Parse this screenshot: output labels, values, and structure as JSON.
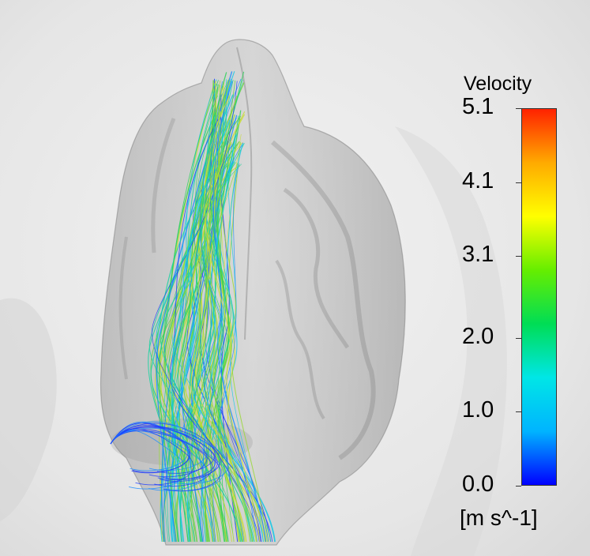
{
  "legend": {
    "title": "Velocity",
    "unit": "[m s^-1]",
    "ticks": [
      "5.1",
      "4.1",
      "3.1",
      "2.0",
      "1.0",
      "0.0"
    ],
    "tick_values": [
      5.1,
      4.1,
      3.1,
      2.0,
      1.0,
      0.0
    ],
    "range": [
      0.0,
      5.1
    ],
    "colormap": [
      "#0000ff",
      "#00b4ff",
      "#00e6e6",
      "#00dd55",
      "#66ee00",
      "#ffff00",
      "#ffaa00",
      "#ff2200"
    ]
  },
  "scene": {
    "background_color": "#e9e9e9",
    "airway_color": "#b0b0b0",
    "streamline_colors": [
      "#1e3cff",
      "#1a8cff",
      "#14c8e6",
      "#18d2a0",
      "#2ed25a",
      "#5ed23a",
      "#9ad83a",
      "#c8dc32"
    ]
  }
}
